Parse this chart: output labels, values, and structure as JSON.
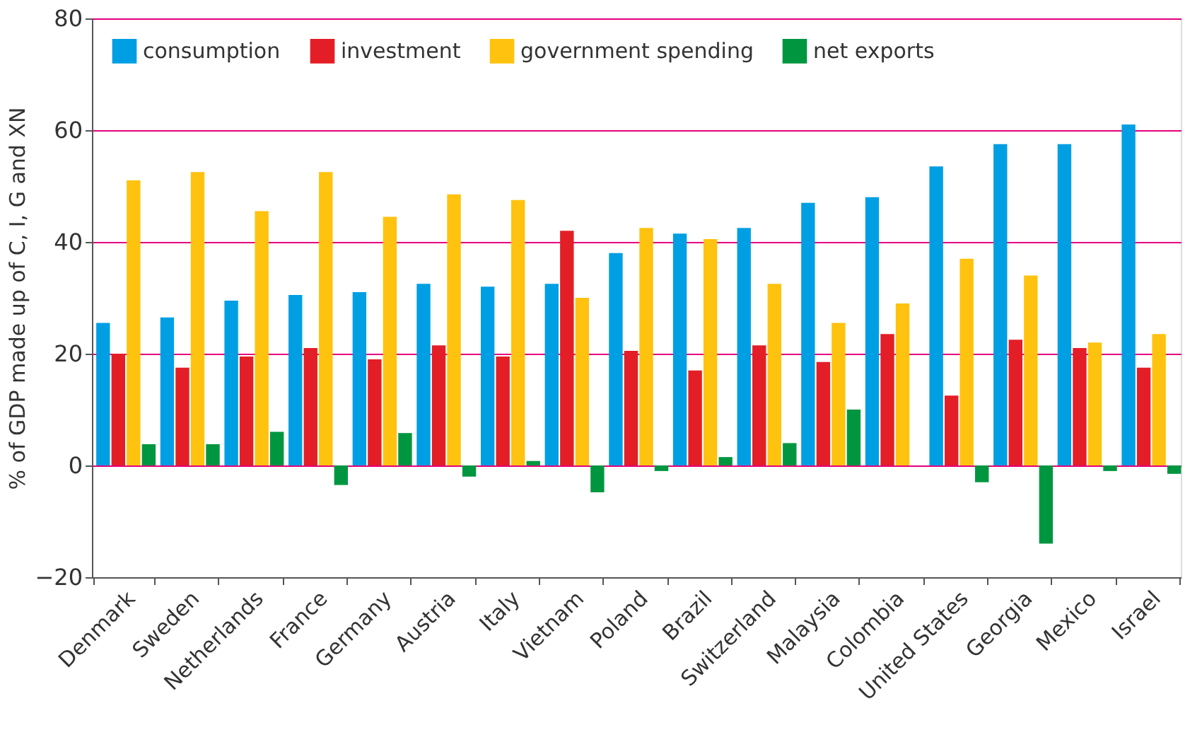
{
  "chart_data": {
    "type": "bar",
    "ylabel": "% of GDP made up of C, I, G and XN",
    "categories": [
      "Denmark",
      "Sweden",
      "Netherlands",
      "France",
      "Germany",
      "Austria",
      "Italy",
      "Vietnam",
      "Poland",
      "Brazil",
      "Switzerland",
      "Malaysia",
      "Colombia",
      "United States",
      "Georgia",
      "Mexico",
      "Israel"
    ],
    "series": [
      {
        "name": "consumption",
        "color": "#009fe3",
        "values": [
          25.5,
          26.5,
          29.5,
          30.5,
          31,
          32.5,
          32,
          32.5,
          38,
          41.5,
          42.5,
          47,
          48,
          53.5,
          57.5,
          57.5,
          61
        ]
      },
      {
        "name": "investment",
        "color": "#e41e26",
        "values": [
          20,
          17.5,
          19.5,
          21,
          19,
          21.5,
          19.5,
          42,
          20.5,
          17,
          21.5,
          18.5,
          23.5,
          12.5,
          22.5,
          21,
          17.5
        ]
      },
      {
        "name": "government spending",
        "color": "#ffc20e",
        "values": [
          51,
          52.5,
          45.5,
          52.5,
          44.5,
          48.5,
          47.5,
          30,
          42.5,
          40.5,
          32.5,
          25.5,
          29,
          37,
          34,
          22,
          23.5
        ]
      },
      {
        "name": "net exports",
        "color": "#009640",
        "values": [
          3.8,
          3.8,
          6,
          -3.5,
          5.8,
          -2,
          0.8,
          -4.8,
          -1,
          1.5,
          4,
          10,
          0,
          -3,
          -14,
          -1,
          -1.5
        ]
      }
    ],
    "ylim": [
      -20,
      80
    ],
    "yticks": [
      -20,
      0,
      20,
      40,
      60,
      80
    ],
    "grid": "y",
    "legend": "top"
  }
}
